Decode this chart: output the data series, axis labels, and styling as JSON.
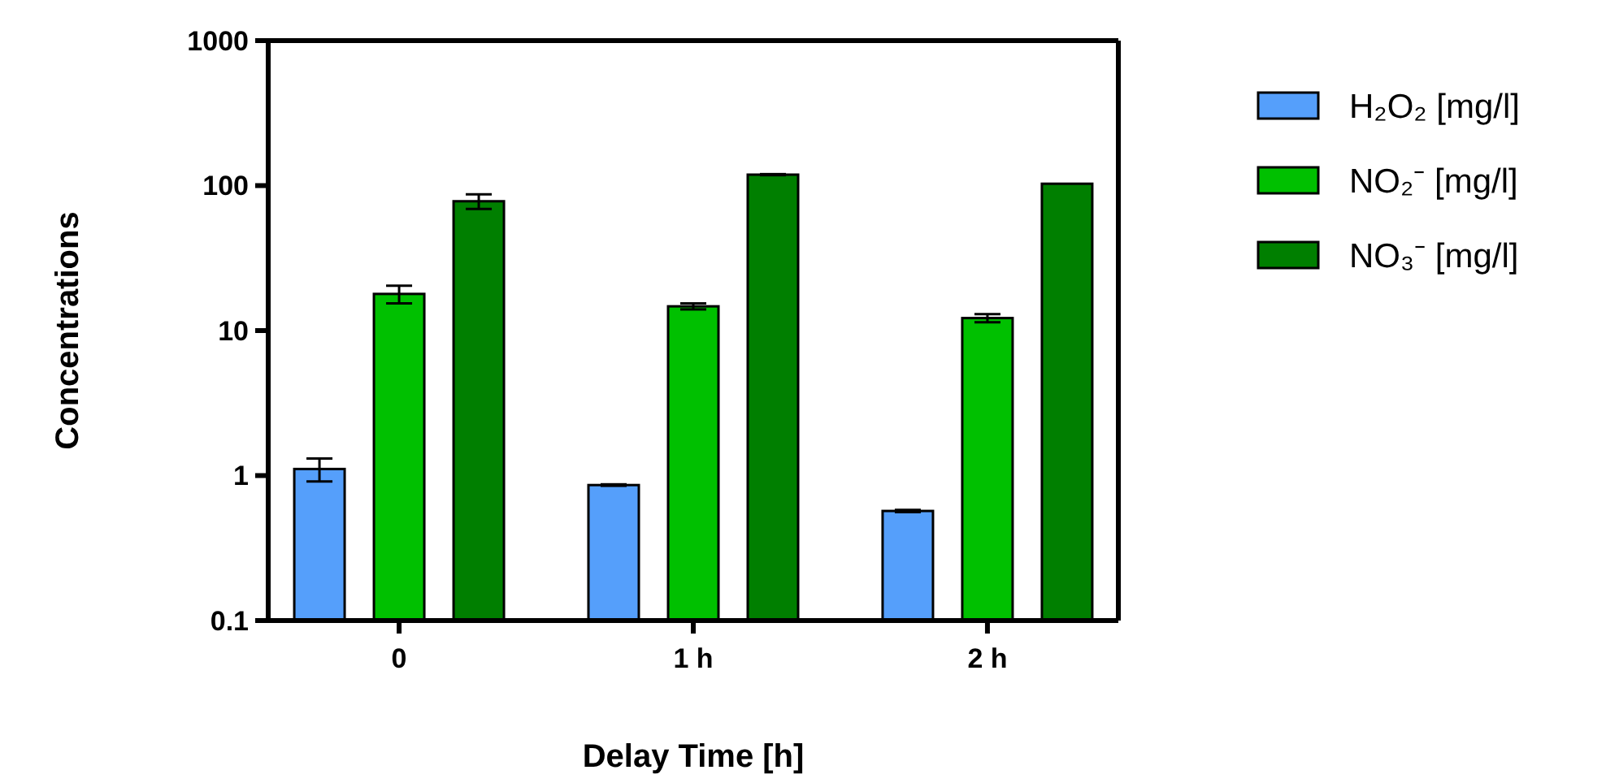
{
  "chart_data": {
    "type": "bar",
    "xlabel": "Delay Time [h]",
    "ylabel": "Concentrations",
    "categories": [
      "0",
      "1 h",
      "2 h"
    ],
    "series": [
      {
        "name": "H₂O₂ [mg/l]",
        "color": "#559ffb",
        "values": [
          1.11,
          0.86,
          0.57
        ],
        "errors": [
          0.2,
          0.01,
          0.01
        ]
      },
      {
        "name": "NO₂⁻ [mg/l]",
        "color": "#00c000",
        "values": [
          17.9,
          14.7,
          12.2
        ],
        "errors": [
          2.5,
          0.7,
          0.8
        ]
      },
      {
        "name": "NO₃⁻ [mg/l]",
        "color": "#007f00",
        "values": [
          78,
          119,
          103
        ],
        "errors": [
          9,
          1,
          null
        ]
      }
    ],
    "log": true,
    "ylim": [
      0.1,
      1000
    ],
    "yticks": [
      0.1,
      1,
      10,
      100,
      1000
    ],
    "grid": false,
    "legend": "right"
  }
}
